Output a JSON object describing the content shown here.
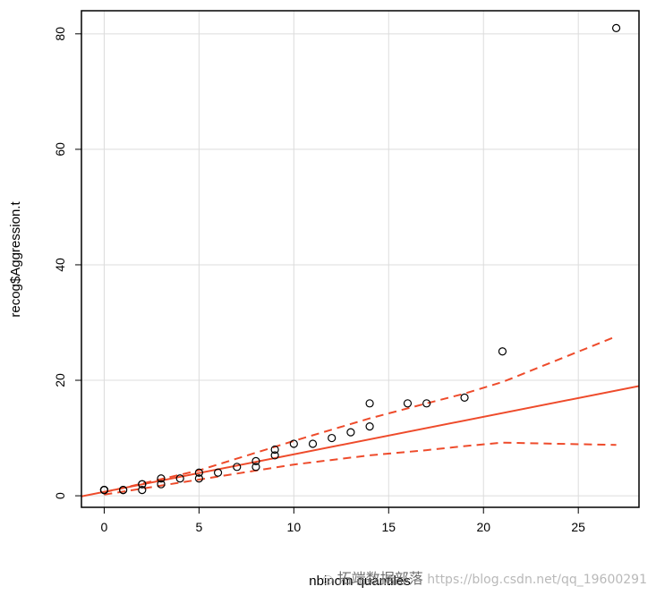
{
  "chart_data": {
    "type": "scatter",
    "title": "",
    "xlabel": "nbinom quantiles",
    "ylabel": "recog$Aggression.t",
    "xlim": [
      -1.2,
      28.2
    ],
    "ylim": [
      -2,
      84
    ],
    "xticks": [
      0,
      5,
      10,
      15,
      20,
      25
    ],
    "yticks": [
      0,
      20,
      40,
      60,
      80
    ],
    "grid": true,
    "colors": {
      "points": "#000000",
      "lines": "#ee4b2b",
      "grid": "#dcdcdc",
      "frame": "#000000"
    },
    "points": [
      {
        "x": 0,
        "y": 1
      },
      {
        "x": 0,
        "y": 1
      },
      {
        "x": 0,
        "y": 1
      },
      {
        "x": 0,
        "y": 1
      },
      {
        "x": 1,
        "y": 1
      },
      {
        "x": 1,
        "y": 1
      },
      {
        "x": 2,
        "y": 1
      },
      {
        "x": 2,
        "y": 2
      },
      {
        "x": 2,
        "y": 2
      },
      {
        "x": 3,
        "y": 2
      },
      {
        "x": 3,
        "y": 3
      },
      {
        "x": 4,
        "y": 3
      },
      {
        "x": 5,
        "y": 3
      },
      {
        "x": 5,
        "y": 4
      },
      {
        "x": 6,
        "y": 4
      },
      {
        "x": 7,
        "y": 5
      },
      {
        "x": 8,
        "y": 5
      },
      {
        "x": 8,
        "y": 6
      },
      {
        "x": 9,
        "y": 7
      },
      {
        "x": 9,
        "y": 8
      },
      {
        "x": 10,
        "y": 9
      },
      {
        "x": 11,
        "y": 9
      },
      {
        "x": 12,
        "y": 10
      },
      {
        "x": 13,
        "y": 11
      },
      {
        "x": 14,
        "y": 12
      },
      {
        "x": 14,
        "y": 16
      },
      {
        "x": 16,
        "y": 16
      },
      {
        "x": 17,
        "y": 16
      },
      {
        "x": 19,
        "y": 17
      },
      {
        "x": 21,
        "y": 25
      },
      {
        "x": 27,
        "y": 81
      }
    ],
    "reference_line": {
      "x": [
        -1.2,
        28.2
      ],
      "y": [
        -0.1,
        19.0
      ]
    },
    "upper_band": {
      "x": [
        0,
        5,
        10,
        14,
        17,
        19,
        21,
        27
      ],
      "y": [
        0.6,
        4.4,
        9.5,
        13.4,
        16.0,
        17.7,
        19.7,
        27.6
      ]
    },
    "lower_band": {
      "x": [
        0,
        5,
        10,
        14,
        17,
        19,
        21,
        27
      ],
      "y": [
        0.2,
        2.8,
        5.4,
        7.0,
        7.9,
        8.6,
        9.2,
        8.8
      ]
    }
  },
  "watermark": {
    "brand": "拓端数据部落",
    "url": "https://blog.csdn.net/qq_19600291"
  }
}
